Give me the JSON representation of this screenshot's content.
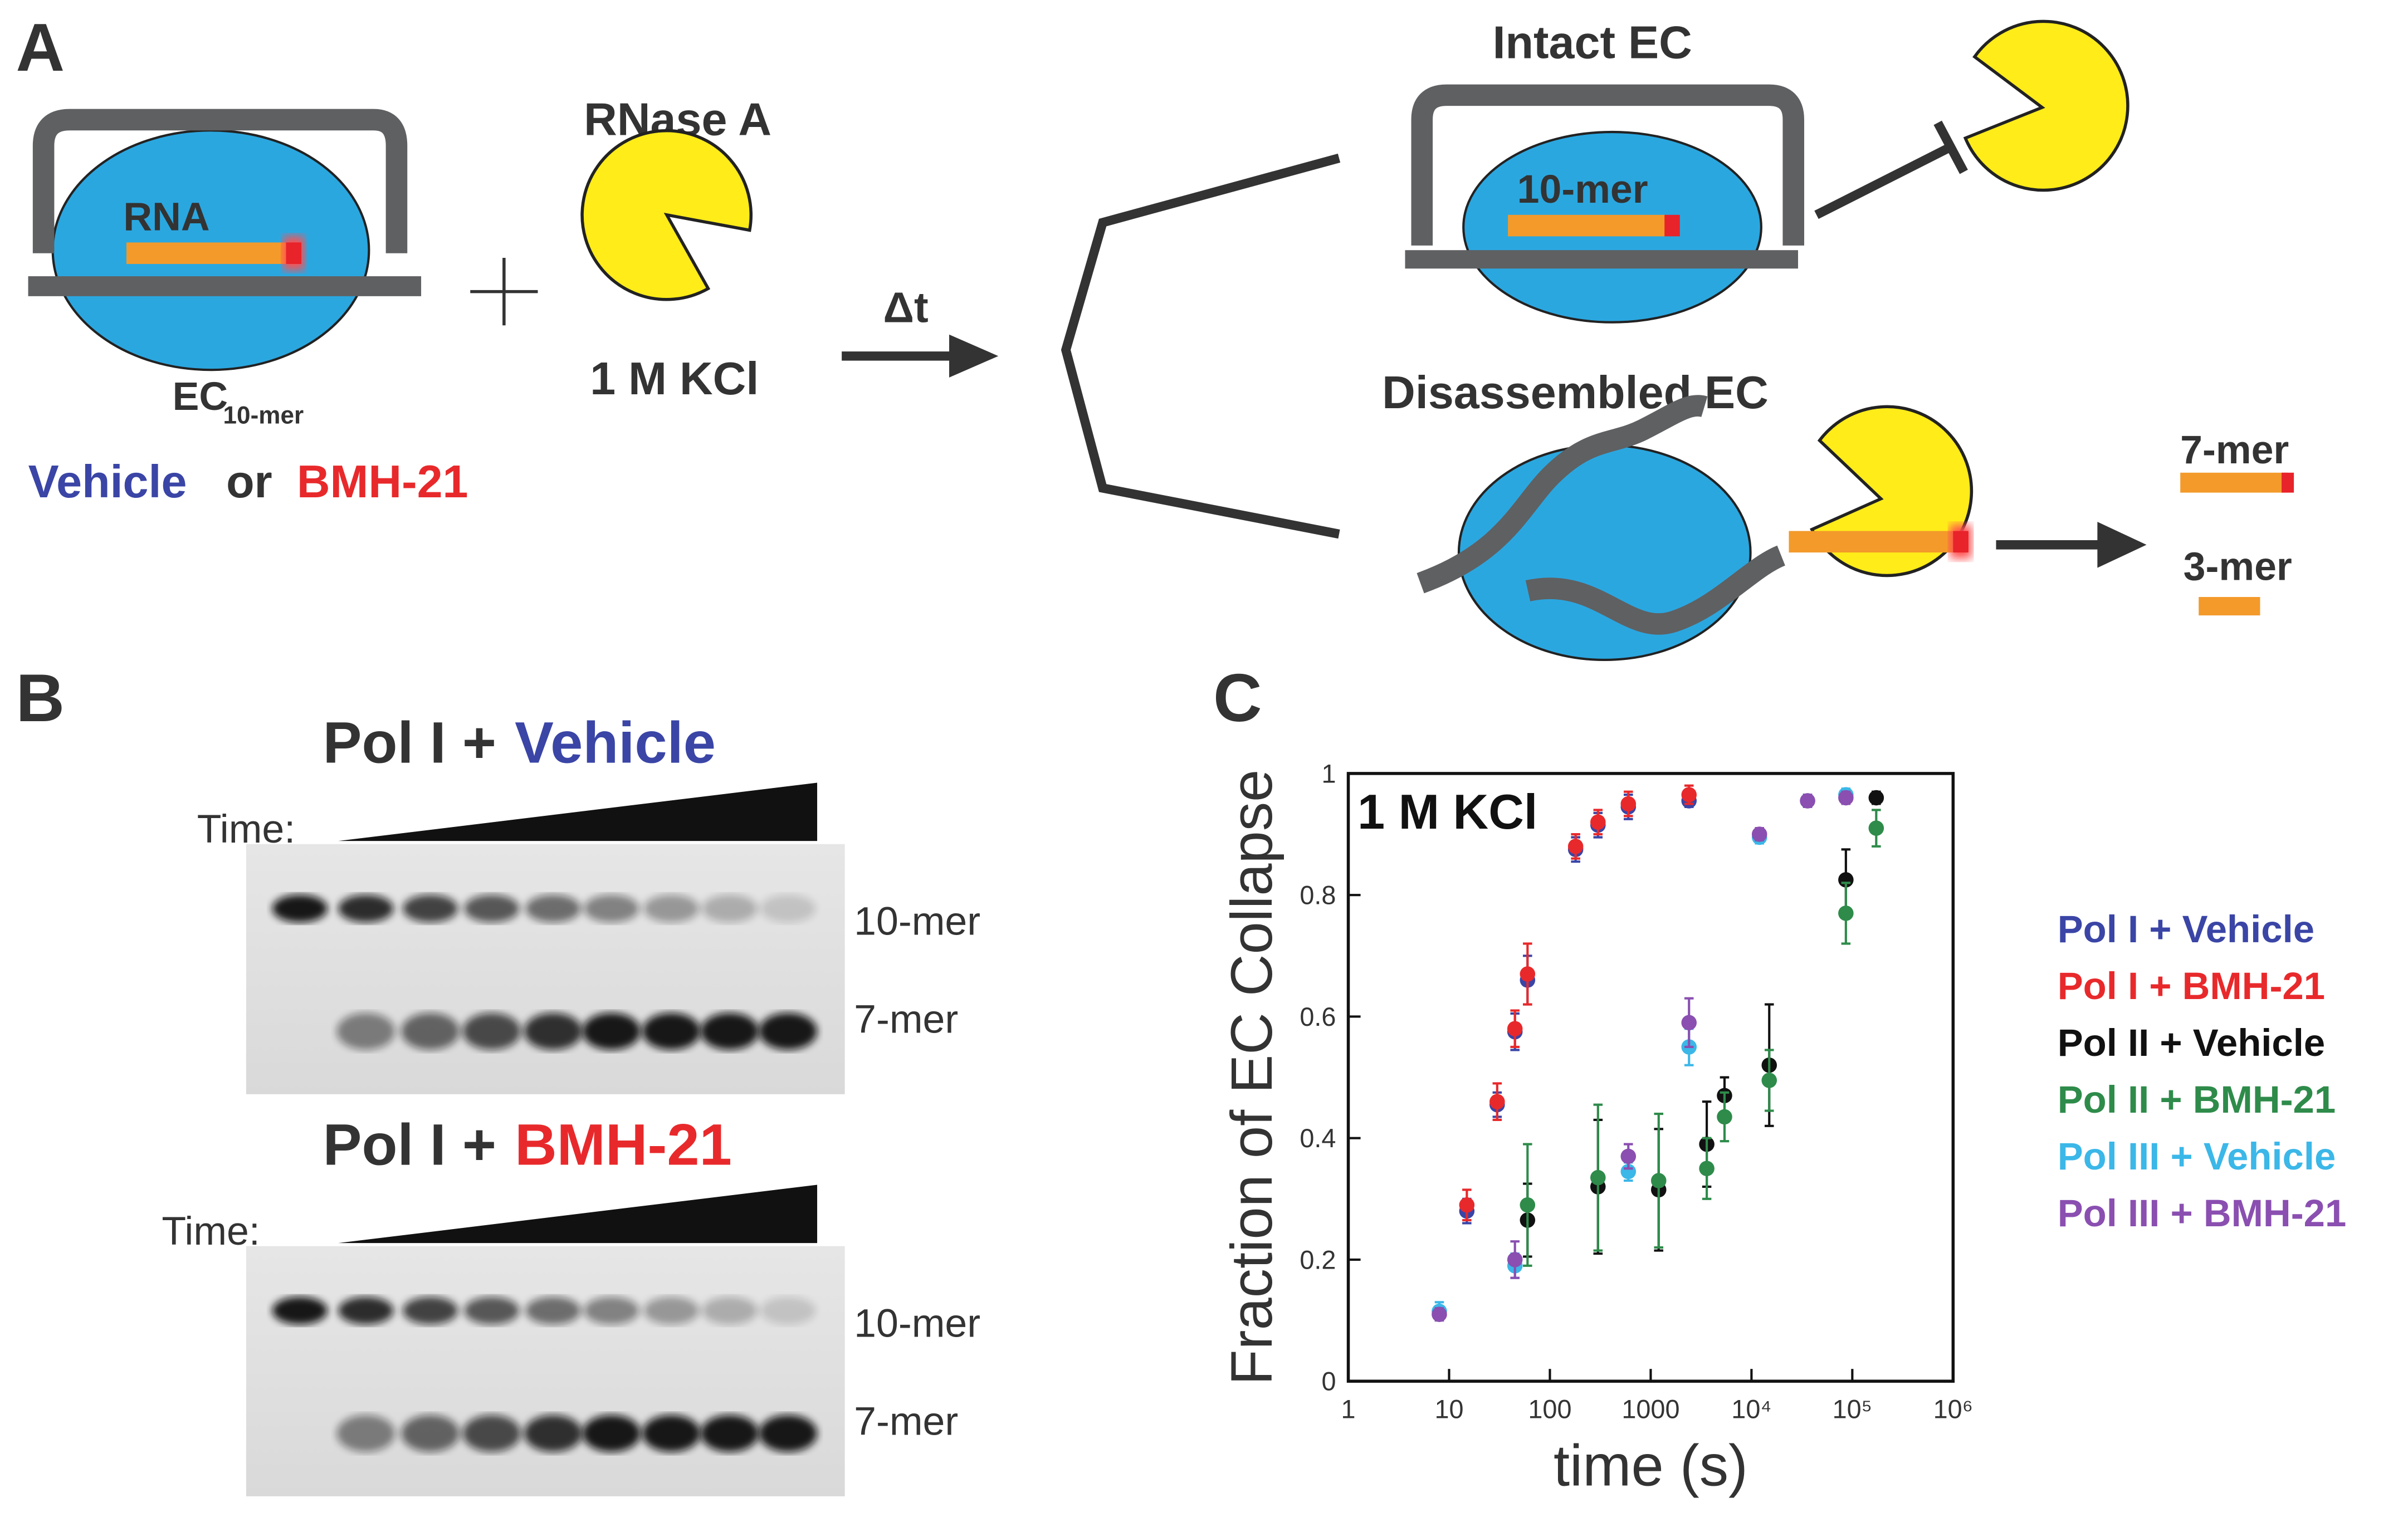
{
  "panel_a": {
    "label": "A",
    "rna_label": "RNA",
    "ec_label": "EC",
    "ec_subscript": "10-mer",
    "condition_vehicle": "Vehicle",
    "condition_or": "or",
    "condition_drug": "BMH-21",
    "enzyme": "RNase A",
    "salt": "1 M KCl",
    "delta": "Δt",
    "intact": {
      "title": "Intact EC",
      "rna": "10-mer"
    },
    "disassembled": {
      "title": "Disassembled EC",
      "product1": "7-mer",
      "product2": "3-mer"
    }
  },
  "panel_b": {
    "label": "B",
    "gels": [
      {
        "title_prefix": "Pol I +",
        "title_condition": "Vehicle",
        "time_label": "Time:",
        "band_top": "10-mer",
        "band_bottom": "7-mer"
      },
      {
        "title_prefix": "Pol I +",
        "title_condition": "BMH-21",
        "time_label": "Time:",
        "band_top": "10-mer",
        "band_bottom": "7-mer"
      }
    ]
  },
  "chart_data": {
    "type": "scatter",
    "panel_label": "C",
    "annotation": "1 M KCl",
    "xlabel": "time (s)",
    "ylabel": "Fraction of EC Collapse",
    "xscale": "log",
    "xlim": [
      1,
      1000000
    ],
    "ylim": [
      0,
      1
    ],
    "xticks": [
      1,
      10,
      100,
      1000,
      {
        "value": 10000,
        "label": "10⁴"
      },
      {
        "value": 100000,
        "label": "10⁵"
      },
      {
        "value": 1000000,
        "label": "10⁶"
      }
    ],
    "yticks": [
      0,
      0.2,
      0.4,
      0.6,
      0.8,
      1
    ],
    "series": [
      {
        "name": "Pol I + Vehicle",
        "color": "#3a45a6",
        "x": [
          15,
          30,
          45,
          60,
          180,
          300,
          600,
          2400
        ],
        "values": [
          0.28,
          0.455,
          0.575,
          0.66,
          0.875,
          0.915,
          0.945,
          0.955
        ],
        "errors": [
          0.02,
          0.02,
          0.03,
          0.04,
          0.02,
          0.02,
          0.02,
          0.01
        ]
      },
      {
        "name": "Pol I + BMH-21",
        "color": "#e8292b",
        "x": [
          15,
          30,
          45,
          60,
          180,
          300,
          600,
          2400
        ],
        "values": [
          0.29,
          0.46,
          0.58,
          0.67,
          0.88,
          0.92,
          0.95,
          0.965
        ],
        "errors": [
          0.025,
          0.03,
          0.03,
          0.05,
          0.02,
          0.02,
          0.02,
          0.015
        ]
      },
      {
        "name": "Pol II + Vehicle",
        "color": "#111111",
        "x": [
          60,
          300,
          1200,
          3600,
          5400,
          15000,
          86400,
          172800
        ],
        "values": [
          0.265,
          0.32,
          0.315,
          0.39,
          0.47,
          0.52,
          0.825,
          0.96
        ],
        "errors": [
          0.06,
          0.11,
          0.1,
          0.07,
          0.03,
          0.1,
          0.05,
          0.01
        ]
      },
      {
        "name": "Pol II + BMH-21",
        "color": "#2e8b4a",
        "x": [
          60,
          300,
          1200,
          3600,
          5400,
          15000,
          86400,
          172800
        ],
        "values": [
          0.29,
          0.335,
          0.33,
          0.35,
          0.435,
          0.495,
          0.77,
          0.91
        ],
        "errors": [
          0.1,
          0.12,
          0.11,
          0.05,
          0.04,
          0.05,
          0.05,
          0.03
        ]
      },
      {
        "name": "Pol III + Vehicle",
        "color": "#3bb7e8",
        "x": [
          8,
          45,
          600,
          2400,
          12000,
          36000,
          86400
        ],
        "values": [
          0.115,
          0.19,
          0.345,
          0.55,
          0.895,
          0.955,
          0.965
        ],
        "errors": [
          0.015,
          0.02,
          0.015,
          0.03,
          0.01,
          0.01,
          0.01
        ]
      },
      {
        "name": "Pol III + BMH-21",
        "color": "#8a4fb0",
        "x": [
          8,
          45,
          600,
          2400,
          12000,
          36000,
          86400
        ],
        "values": [
          0.11,
          0.2,
          0.37,
          0.59,
          0.9,
          0.955,
          0.96
        ],
        "errors": [
          0.01,
          0.03,
          0.02,
          0.04,
          0.01,
          0.01,
          0.01
        ]
      }
    ]
  }
}
